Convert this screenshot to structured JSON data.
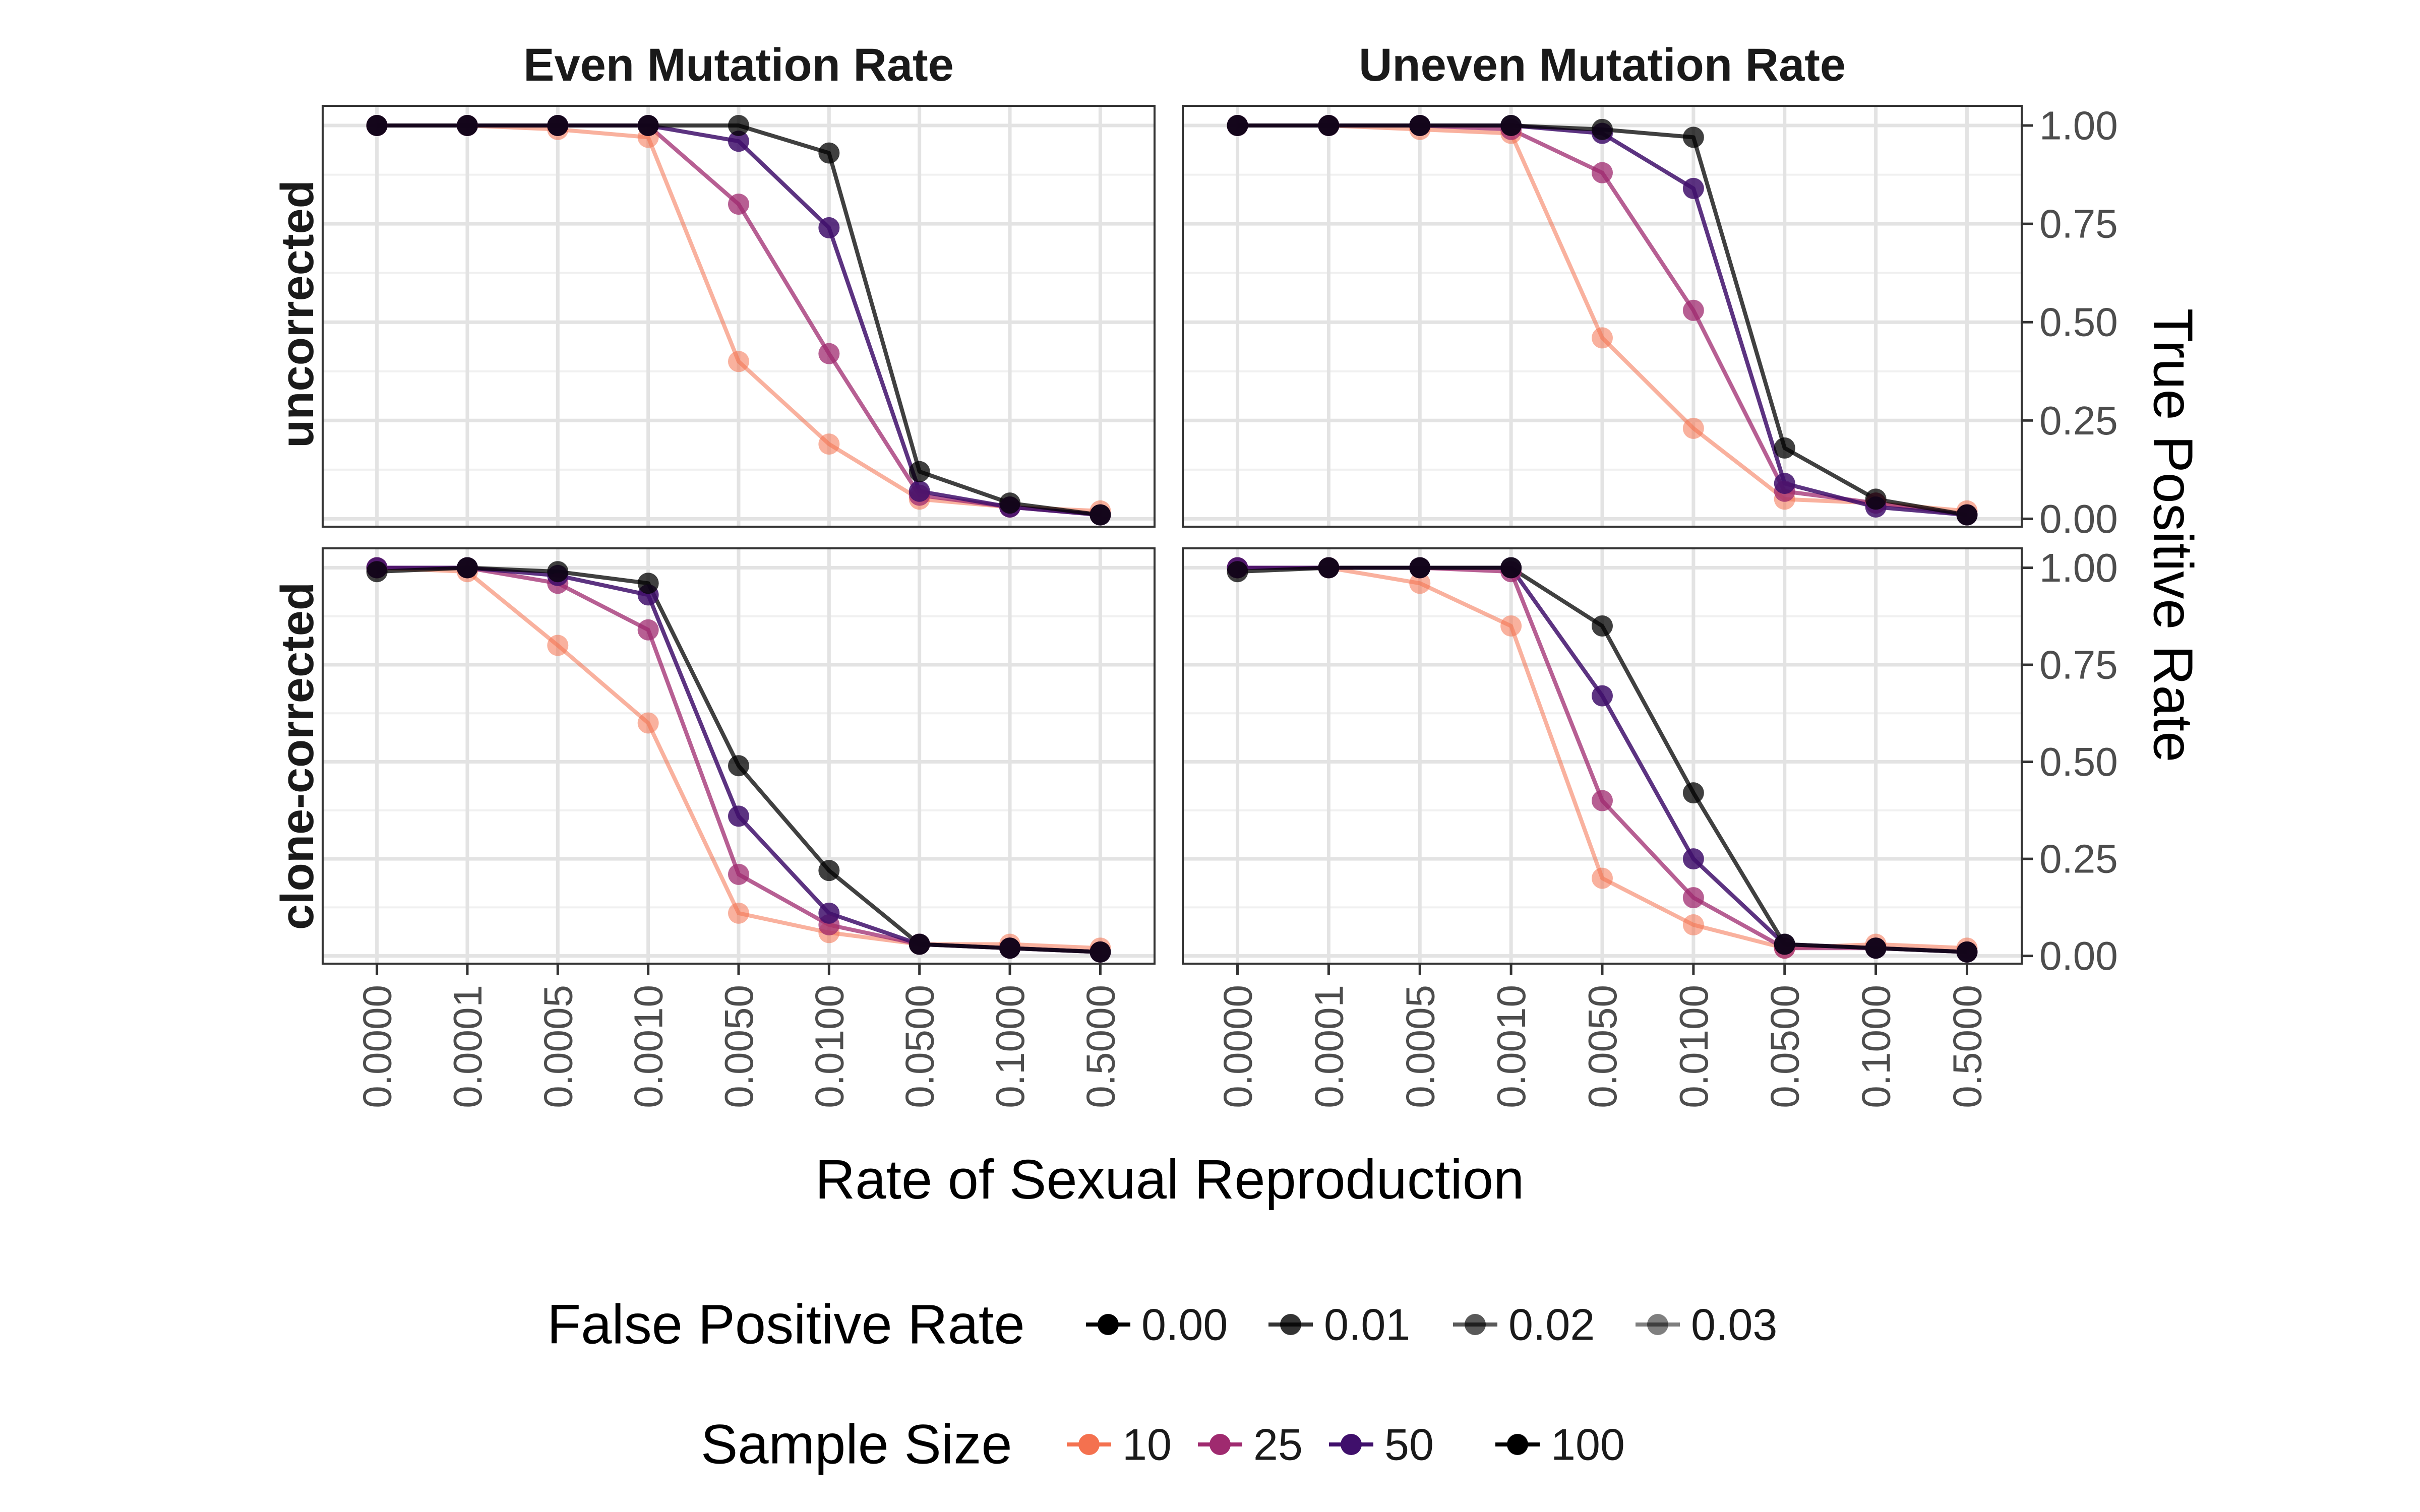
{
  "chart_data": {
    "type": "line",
    "x_label": "Rate of Sexual Reproduction",
    "y_label": "True Positive Rate",
    "x_categories": [
      "0.0000",
      "0.0001",
      "0.0005",
      "0.0010",
      "0.0050",
      "0.0100",
      "0.0500",
      "0.1000",
      "0.5000"
    ],
    "y_ticks": [
      "0.00",
      "0.25",
      "0.50",
      "0.75",
      "1.00"
    ],
    "y_tick_values": [
      0,
      0.25,
      0.5,
      0.75,
      1
    ],
    "ylim": [
      -0.02,
      1.05
    ],
    "grid": true,
    "facet_columns": [
      "Even Mutation Rate",
      "Uneven Mutation Rate"
    ],
    "facet_rows": [
      "uncorrected",
      "clone-corrected"
    ],
    "legend_position": "bottom",
    "legends": {
      "false_positive_rate": {
        "title": "False Positive Rate",
        "entries": [
          {
            "label": "0.00",
            "opacity": 1.0
          },
          {
            "label": "0.01",
            "opacity": 0.8
          },
          {
            "label": "0.02",
            "opacity": 0.65
          },
          {
            "label": "0.03",
            "opacity": 0.5
          }
        ]
      },
      "sample_size": {
        "title": "Sample Size",
        "entries": [
          {
            "label": "10",
            "color": "#f4714f"
          },
          {
            "label": "25",
            "color": "#9f2a6f"
          },
          {
            "label": "50",
            "color": "#3f0f6b"
          },
          {
            "label": "100",
            "color": "#000000"
          }
        ]
      }
    },
    "panels": [
      {
        "col": 0,
        "row": 0,
        "series": [
          {
            "sample_size": "10",
            "color": "#f4714f",
            "opacity": 0.55,
            "values": [
              1.0,
              1.0,
              0.99,
              0.97,
              0.4,
              0.19,
              0.05,
              0.03,
              0.02
            ]
          },
          {
            "sample_size": "25",
            "color": "#9f2a6f",
            "opacity": 0.75,
            "values": [
              1.0,
              1.0,
              1.0,
              1.0,
              0.8,
              0.42,
              0.06,
              0.03,
              0.01
            ]
          },
          {
            "sample_size": "50",
            "color": "#3f0f6b",
            "opacity": 0.85,
            "values": [
              1.0,
              1.0,
              1.0,
              1.0,
              0.96,
              0.74,
              0.07,
              0.03,
              0.01
            ]
          },
          {
            "sample_size": "100",
            "color": "#000000",
            "opacity": 0.75,
            "values": [
              1.0,
              1.0,
              1.0,
              1.0,
              1.0,
              0.93,
              0.12,
              0.04,
              0.01
            ]
          }
        ]
      },
      {
        "col": 1,
        "row": 0,
        "series": [
          {
            "sample_size": "10",
            "color": "#f4714f",
            "opacity": 0.55,
            "values": [
              1.0,
              1.0,
              0.99,
              0.98,
              0.46,
              0.23,
              0.05,
              0.04,
              0.02
            ]
          },
          {
            "sample_size": "25",
            "color": "#9f2a6f",
            "opacity": 0.75,
            "values": [
              1.0,
              1.0,
              1.0,
              0.99,
              0.88,
              0.53,
              0.07,
              0.04,
              0.01
            ]
          },
          {
            "sample_size": "50",
            "color": "#3f0f6b",
            "opacity": 0.85,
            "values": [
              1.0,
              1.0,
              1.0,
              1.0,
              0.98,
              0.84,
              0.09,
              0.03,
              0.01
            ]
          },
          {
            "sample_size": "100",
            "color": "#000000",
            "opacity": 0.75,
            "values": [
              1.0,
              1.0,
              1.0,
              1.0,
              0.99,
              0.97,
              0.18,
              0.05,
              0.01
            ]
          }
        ]
      },
      {
        "col": 0,
        "row": 1,
        "series": [
          {
            "sample_size": "10",
            "color": "#f4714f",
            "opacity": 0.55,
            "values": [
              1.0,
              0.99,
              0.8,
              0.6,
              0.11,
              0.06,
              0.03,
              0.03,
              0.02
            ]
          },
          {
            "sample_size": "25",
            "color": "#9f2a6f",
            "opacity": 0.75,
            "values": [
              1.0,
              1.0,
              0.96,
              0.84,
              0.21,
              0.08,
              0.03,
              0.02,
              0.01
            ]
          },
          {
            "sample_size": "50",
            "color": "#3f0f6b",
            "opacity": 0.85,
            "values": [
              1.0,
              1.0,
              0.98,
              0.93,
              0.36,
              0.11,
              0.03,
              0.02,
              0.01
            ]
          },
          {
            "sample_size": "100",
            "color": "#000000",
            "opacity": 0.75,
            "values": [
              0.99,
              1.0,
              0.99,
              0.96,
              0.49,
              0.22,
              0.03,
              0.02,
              0.01
            ]
          }
        ]
      },
      {
        "col": 1,
        "row": 1,
        "series": [
          {
            "sample_size": "10",
            "color": "#f4714f",
            "opacity": 0.55,
            "values": [
              1.0,
              1.0,
              0.96,
              0.85,
              0.2,
              0.08,
              0.02,
              0.03,
              0.02
            ]
          },
          {
            "sample_size": "25",
            "color": "#9f2a6f",
            "opacity": 0.75,
            "values": [
              1.0,
              1.0,
              1.0,
              0.99,
              0.4,
              0.15,
              0.02,
              0.02,
              0.01
            ]
          },
          {
            "sample_size": "50",
            "color": "#3f0f6b",
            "opacity": 0.85,
            "values": [
              1.0,
              1.0,
              1.0,
              1.0,
              0.67,
              0.25,
              0.03,
              0.02,
              0.01
            ]
          },
          {
            "sample_size": "100",
            "color": "#000000",
            "opacity": 0.75,
            "values": [
              0.99,
              1.0,
              1.0,
              1.0,
              0.85,
              0.42,
              0.03,
              0.02,
              0.01
            ]
          }
        ]
      }
    ]
  }
}
